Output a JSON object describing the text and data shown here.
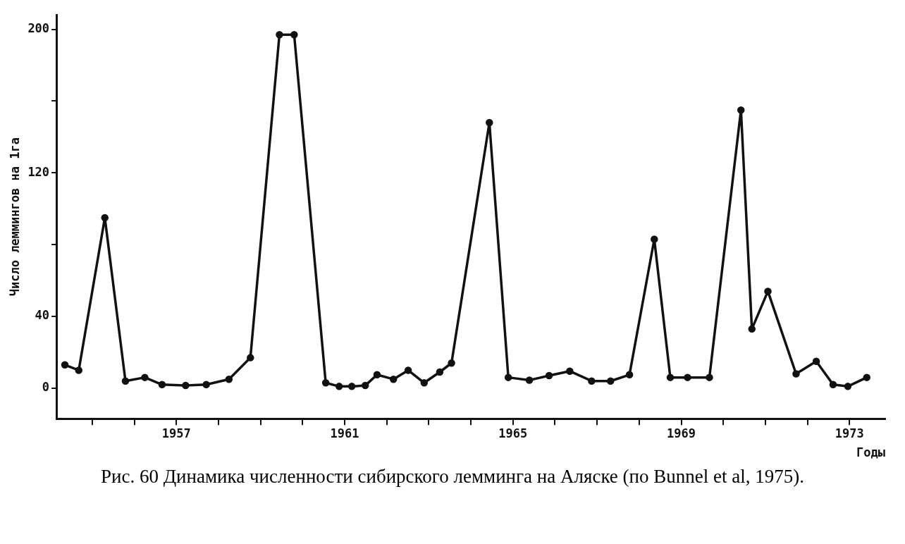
{
  "chart_data": {
    "type": "line",
    "xlabel": "Годы",
    "ylabel": "Число леммингов на 1га",
    "annotations": [
      "Рис. 60 Динамика численности сибирского лемминга на Аляске (по Bunnel et al, 1975)."
    ],
    "x": [
      1954.35,
      1954.68,
      1955.3,
      1955.79,
      1956.25,
      1956.66,
      1957.22,
      1957.71,
      1958.25,
      1958.76,
      1959.45,
      1959.8,
      1960.55,
      1960.87,
      1961.17,
      1961.49,
      1961.77,
      1962.16,
      1962.51,
      1962.89,
      1963.26,
      1963.54,
      1964.44,
      1964.89,
      1965.39,
      1965.86,
      1966.35,
      1966.87,
      1967.32,
      1967.77,
      1968.36,
      1968.74,
      1969.15,
      1969.67,
      1970.42,
      1970.68,
      1971.06,
      1971.73,
      1972.21,
      1972.61,
      1972.96,
      1973.41
    ],
    "values": [
      13,
      10,
      95,
      4,
      6,
      2,
      1.5,
      2,
      5,
      17,
      197,
      197,
      3,
      1,
      1,
      1.5,
      7.5,
      5,
      10,
      3,
      9,
      14,
      148,
      6,
      4.5,
      7,
      9.5,
      4,
      4,
      7.5,
      83,
      6,
      6,
      6,
      155,
      33,
      54,
      8,
      15,
      2,
      1,
      6
    ],
    "color": "#111111",
    "marker": "circle",
    "line_style": "solid",
    "xlim": [
      1954.15,
      1973.85
    ],
    "xticks": [
      {
        "value": 1955,
        "label": null
      },
      {
        "value": 1956,
        "label": null
      },
      1957,
      {
        "value": 1958,
        "label": null
      },
      {
        "value": 1959,
        "label": null
      },
      {
        "value": 1960,
        "label": null
      },
      1961,
      {
        "value": 1962,
        "label": null
      },
      {
        "value": 1963,
        "label": null
      },
      {
        "value": 1964,
        "label": null
      },
      1965,
      {
        "value": 1966,
        "label": null
      },
      {
        "value": 1967,
        "label": null
      },
      {
        "value": 1968,
        "label": null
      },
      1969,
      {
        "value": 1970,
        "label": null
      },
      {
        "value": 1971,
        "label": null
      },
      {
        "value": 1972,
        "label": null
      },
      1973
    ],
    "ylim": [
      -17,
      208
    ],
    "yticks": [
      0,
      40,
      {
        "value": 80,
        "label": null
      },
      120,
      {
        "value": 160,
        "label": null
      },
      200
    ]
  }
}
